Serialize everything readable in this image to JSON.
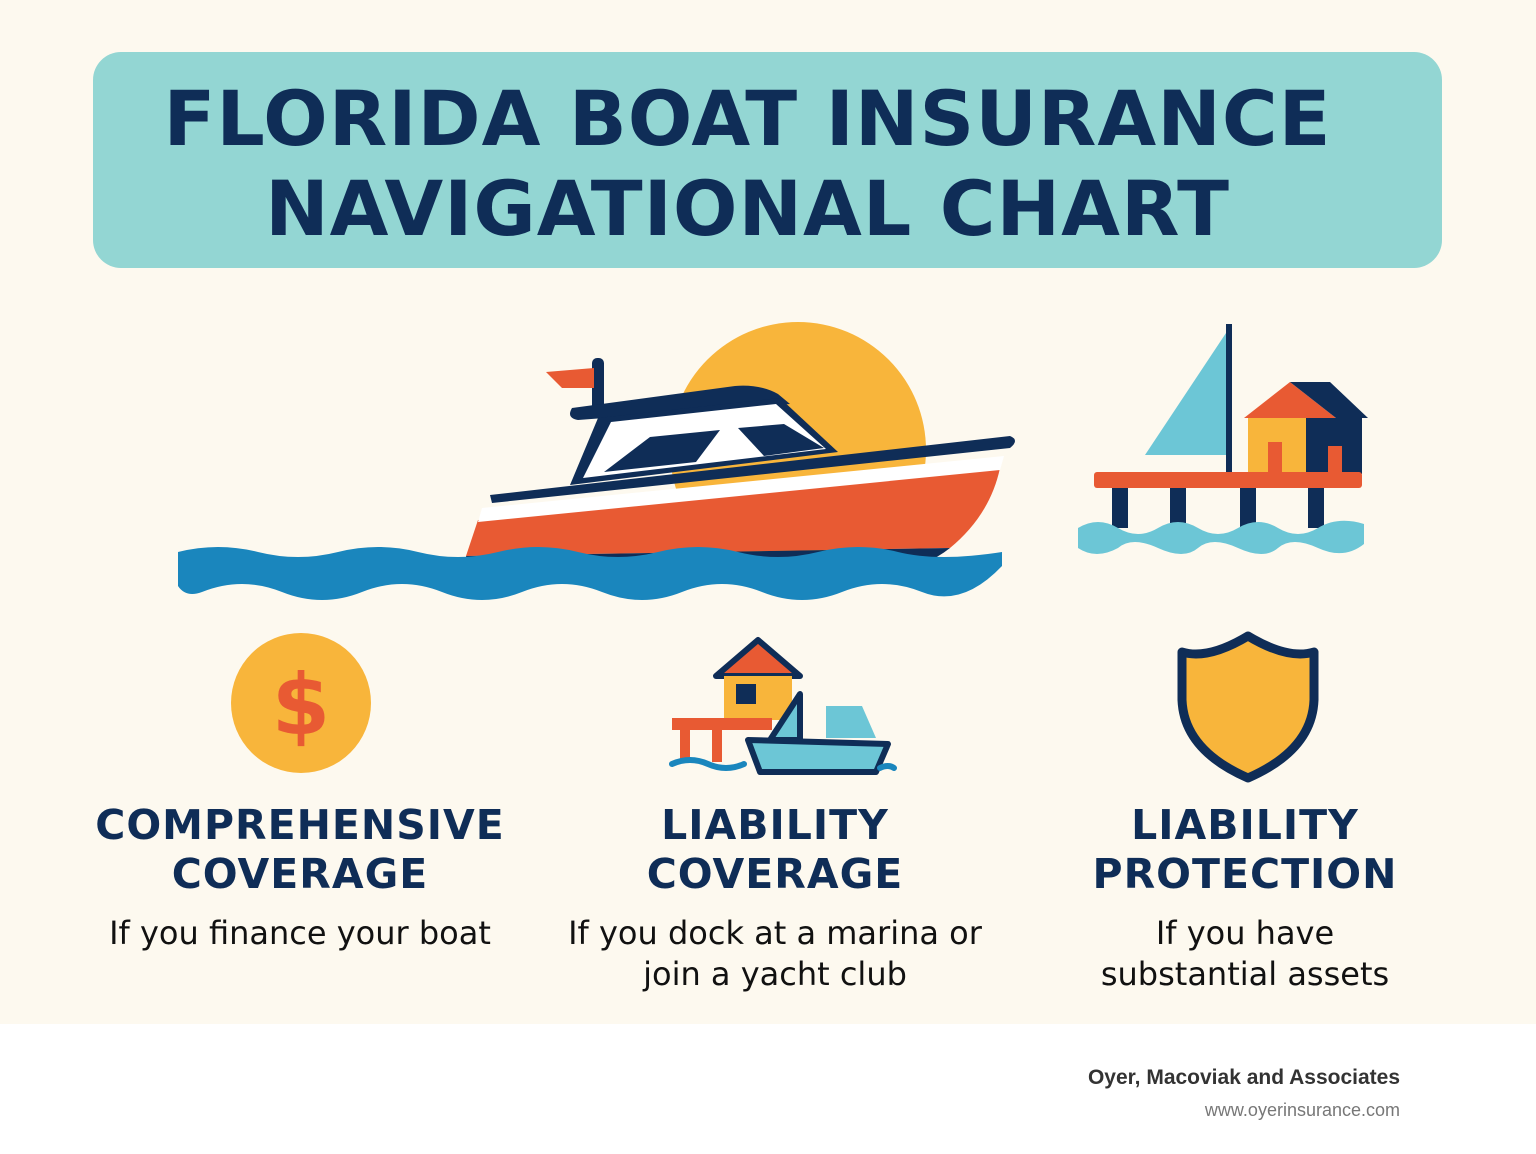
{
  "title": {
    "line1": "FLORIDA BOAT INSURANCE",
    "line2": "NAVIGATIONAL CHART"
  },
  "coverages": [
    {
      "heading_line1": "COMPREHENSIVE",
      "heading_line2": "COVERAGE",
      "description_line1": "If you finance your boat",
      "description_line2": "",
      "icon": "dollar-coin-icon"
    },
    {
      "heading_line1": "LIABILITY",
      "heading_line2": "COVERAGE",
      "description_line1": "If you dock at a marina or",
      "description_line2": "join a yacht club",
      "icon": "marina-boat-icon"
    },
    {
      "heading_line1": "LIABILITY",
      "heading_line2": "PROTECTION",
      "description_line1": "If you have",
      "description_line2": "substantial assets",
      "icon": "shield-icon"
    }
  ],
  "illustrations": {
    "hero": "motor-yacht-icon",
    "dock": "dock-house-sailboat-icon"
  },
  "footer": {
    "company": "Oyer, Macoviak and Associates",
    "url": "www.oyerinsurance.com"
  },
  "colors": {
    "background": "#fdf9ef",
    "banner": "#93d6d3",
    "navy": "#0f2d57",
    "orange": "#e85a33",
    "yellow": "#f8b53b",
    "sea_blue": "#1a86bd",
    "light_blue": "#6cc6d6"
  }
}
